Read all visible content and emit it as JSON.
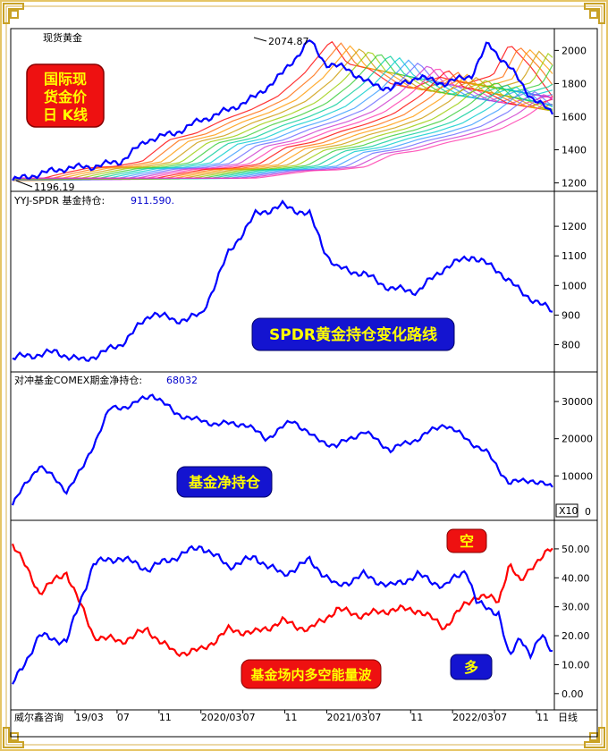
{
  "chart_data": [
    {
      "type": "line",
      "title": "现货黄金",
      "badge": "国际现 货金价 日 K线",
      "annotations": [
        {
          "text": "2074.87",
          "x": 0.56,
          "y": 2074.87
        },
        {
          "text": "1196.19",
          "x": 0.0,
          "y": 1196.19
        }
      ],
      "yticks": [
        1200,
        1400,
        1600,
        1800,
        2000
      ],
      "ylim": [
        1160,
        2110
      ],
      "x": [
        0,
        0.05,
        0.1,
        0.15,
        0.2,
        0.25,
        0.3,
        0.35,
        0.4,
        0.45,
        0.5,
        0.55,
        0.58,
        0.62,
        0.66,
        0.7,
        0.75,
        0.8,
        0.85,
        0.88,
        0.92,
        0.96,
        1.0
      ],
      "series": [
        {
          "values": [
            1215,
            1255,
            1290,
            1300,
            1330,
            1460,
            1500,
            1580,
            1640,
            1720,
            1860,
            2060,
            1920,
            1890,
            1800,
            1770,
            1840,
            1800,
            1850,
            2040,
            1900,
            1720,
            1620
          ]
        }
      ]
    },
    {
      "type": "line",
      "title": "YYJ-SPDR 基金持仓:",
      "value_label": "911.590.",
      "badge": "SPDR黄金持仓变化路线",
      "yticks": [
        800,
        900,
        1000,
        1100,
        1200
      ],
      "ylim": [
        720,
        1300
      ],
      "x": [
        0,
        0.08,
        0.13,
        0.2,
        0.26,
        0.3,
        0.35,
        0.4,
        0.45,
        0.5,
        0.55,
        0.58,
        0.6,
        0.65,
        0.7,
        0.75,
        0.8,
        0.85,
        0.9,
        0.94,
        1.0
      ],
      "series": [
        {
          "values": [
            755,
            775,
            745,
            800,
            910,
            880,
            900,
            1110,
            1240,
            1270,
            1240,
            1110,
            1060,
            1040,
            990,
            980,
            1060,
            1100,
            1050,
            980,
            911.59
          ]
        }
      ]
    },
    {
      "type": "line",
      "title": "对冲基金COMEX期金净持仓:",
      "value_label": "68032",
      "badge": "基金净持仓",
      "yticks": [
        10000,
        20000,
        30000
      ],
      "zero_label": "0",
      "scale_label": "X10",
      "ylim": [
        -1000,
        37000
      ],
      "x": [
        0,
        0.05,
        0.1,
        0.13,
        0.18,
        0.22,
        0.26,
        0.3,
        0.34,
        0.38,
        0.43,
        0.47,
        0.52,
        0.56,
        0.6,
        0.65,
        0.7,
        0.75,
        0.8,
        0.84,
        0.88,
        0.92,
        0.96,
        1.0
      ],
      "series": [
        {
          "values": [
            2500,
            13000,
            6000,
            12000,
            28000,
            29000,
            32000,
            27000,
            25000,
            24000,
            24000,
            20000,
            25000,
            20000,
            18000,
            22000,
            17000,
            20000,
            24000,
            20000,
            16000,
            8000,
            9000,
            6800
          ]
        }
      ]
    },
    {
      "type": "line",
      "badge_top": "空",
      "badge_bottom": "多",
      "badge": "基金场内多空能量波",
      "yticks": [
        "0.00",
        "10.00",
        "20.00",
        "30.00",
        "40.00",
        "50.00"
      ],
      "ylim": [
        -5,
        58
      ],
      "x": [
        0,
        0.05,
        0.1,
        0.15,
        0.2,
        0.25,
        0.3,
        0.35,
        0.4,
        0.45,
        0.5,
        0.55,
        0.6,
        0.65,
        0.7,
        0.75,
        0.8,
        0.84,
        0.86,
        0.9,
        0.92,
        0.94,
        0.96,
        0.98,
        1.0
      ],
      "series": [
        {
          "values": [
            52,
            35,
            42,
            20,
            18,
            22,
            14,
            15,
            22,
            21,
            25,
            22,
            29,
            27,
            29,
            29,
            23,
            31,
            34,
            32,
            45,
            38,
            44,
            47,
            50
          ]
        },
        {
          "values": [
            3,
            20,
            18,
            45,
            47,
            43,
            47,
            51,
            44,
            47,
            41,
            46,
            37,
            41,
            37,
            41,
            37,
            43,
            31,
            28,
            12,
            20,
            13,
            20,
            15
          ]
        }
      ],
      "xticks": [
        "19/03",
        "07",
        "11",
        "2020/03",
        "07",
        "11",
        "2021/03",
        "07",
        "11",
        "2022/03",
        "07",
        "11"
      ],
      "footer_left": "威尔鑫咨询",
      "footer_right": "日线"
    }
  ],
  "colors": {
    "blue": "#0000ff",
    "red": "#ff0000",
    "frame": "#c9a227",
    "badge_blue": "#1414d0",
    "badge_red": "#ee1111"
  }
}
